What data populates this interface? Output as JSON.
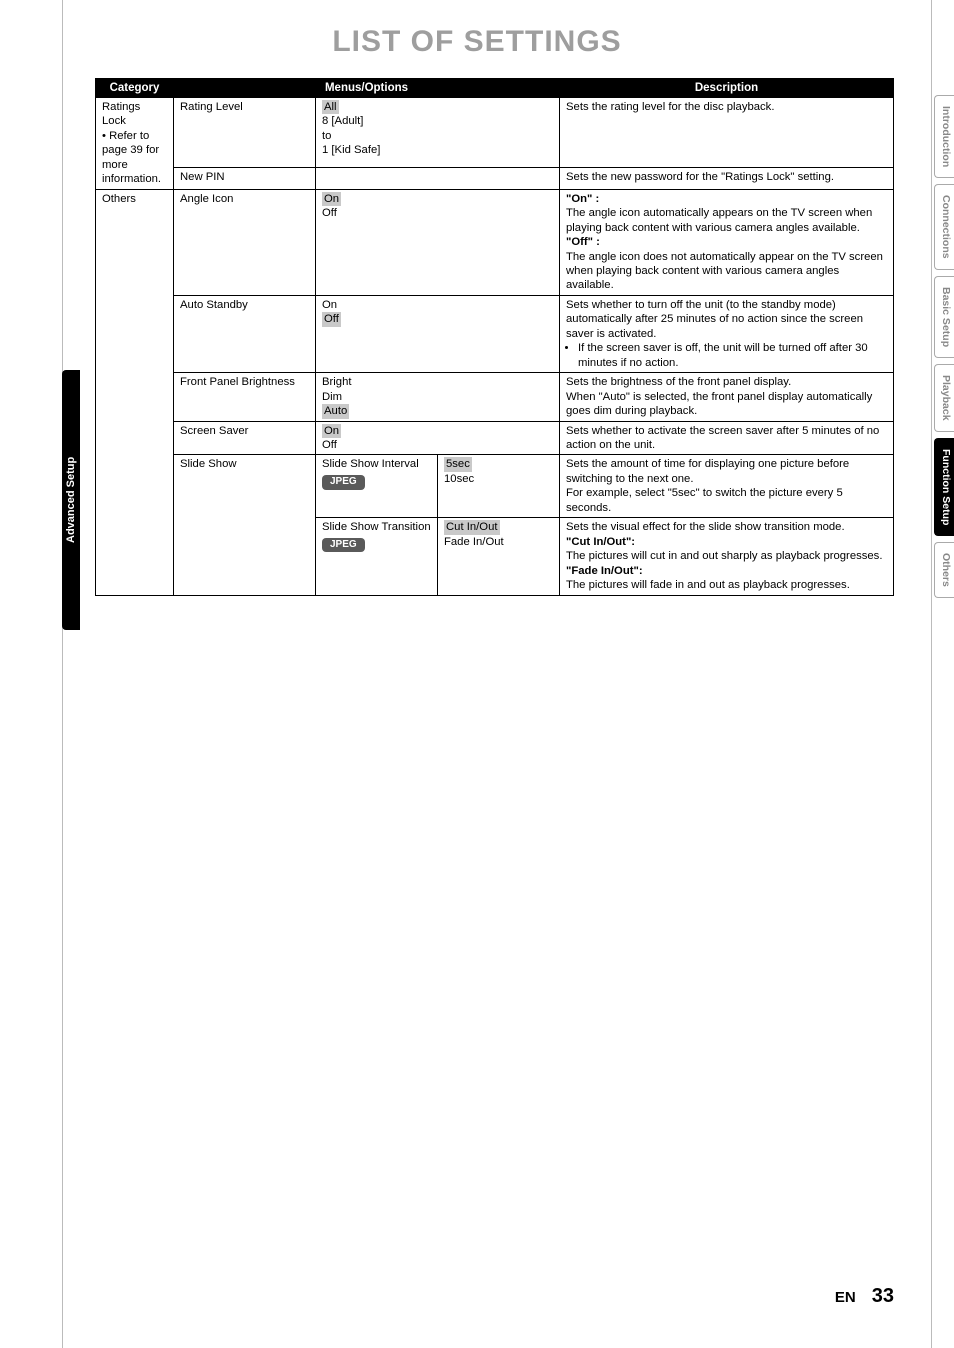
{
  "page_title": "LIST OF SETTINGS",
  "left_tab": "Advanced Setup",
  "side_tabs": [
    {
      "label": "Introduction",
      "active": false
    },
    {
      "label": "Connections",
      "active": false
    },
    {
      "label": "Basic Setup",
      "active": false
    },
    {
      "label": "Playback",
      "active": false
    },
    {
      "label": "Function Setup",
      "active": true
    },
    {
      "label": "Others",
      "active": false
    }
  ],
  "table": {
    "headers": {
      "category": "Category",
      "menus": "Menus/Options",
      "description": "Description"
    },
    "rows": [
      {
        "category_html": "Ratings Lock<br>• Refer to page 39 for more information.",
        "category_rowspan": 2,
        "menu1": "Rating Level",
        "options_html": "<span class='shade'>All</span><br>8 [Adult]<br>to<br>1 [Kid Safe]",
        "options_colspan": 2,
        "desc_html": "Sets the rating level for the disc playback."
      },
      {
        "menu1": "New PIN",
        "options_html": "",
        "options_colspan": 2,
        "desc_html": "Sets the new password for the \"Ratings Lock\" setting."
      },
      {
        "category_html": "Others",
        "category_rowspan": 6,
        "menu1": "Angle Icon",
        "options_html": "<span class='shade'>On</span><br>Off",
        "options_colspan": 2,
        "desc_html": "<b>\"On\" :</b><br>The angle icon automatically appears on the TV screen when playing back content with various camera angles available.<br><b>\"Off\" :</b><br>The angle icon does not automatically appear on the TV screen when playing back content with various camera angles available."
      },
      {
        "menu1": "Auto Standby",
        "options_html": "On<br><span class='shade'>Off</span>",
        "options_colspan": 2,
        "desc_html": "Sets whether to turn off the unit (to the standby mode) automatically after 25 minutes of no action since the screen saver is activated.<ul class='bul'><li>If the screen saver is off, the unit will be turned off after 30 minutes if no action.</li></ul>"
      },
      {
        "menu1": "Front Panel Brightness",
        "options_html": "Bright<br>Dim<br><span class='shade'>Auto</span>",
        "options_colspan": 2,
        "desc_html": "Sets the brightness of the front panel display.<br>When \"Auto\" is selected, the front panel display automatically goes dim during playback."
      },
      {
        "menu1": "Screen Saver",
        "options_html": "<span class='shade'>On</span><br>Off",
        "options_colspan": 2,
        "desc_html": "Sets whether to activate the screen saver after 5 minutes of no action on the unit."
      },
      {
        "menu1": "Slide Show",
        "menu1_rowspan": 2,
        "sub_html": "Slide Show Interval<br><span class='jpeg-badge'>JPEG</span>",
        "val_html": "<span class='shade'>5sec</span><br>10sec",
        "desc_html": "Sets the amount of time for displaying one picture before switching to the next one.<br>For example, select \"5sec\" to switch the picture every 5 seconds."
      },
      {
        "sub_html": "Slide Show Transition<br><span class='jpeg-badge'>JPEG</span>",
        "val_html": "<span class='shade'>Cut In/Out</span><br>Fade In/Out",
        "desc_html": "Sets the visual effect for the slide show transition mode.<br><b>\"Cut In/Out\":</b><br> The pictures will cut in and out sharply as playback progresses.<br><b>\"Fade In/Out\":</b><br>The pictures will fade in and out as playback progresses."
      }
    ]
  },
  "footer": {
    "lang": "EN",
    "page": "33"
  }
}
